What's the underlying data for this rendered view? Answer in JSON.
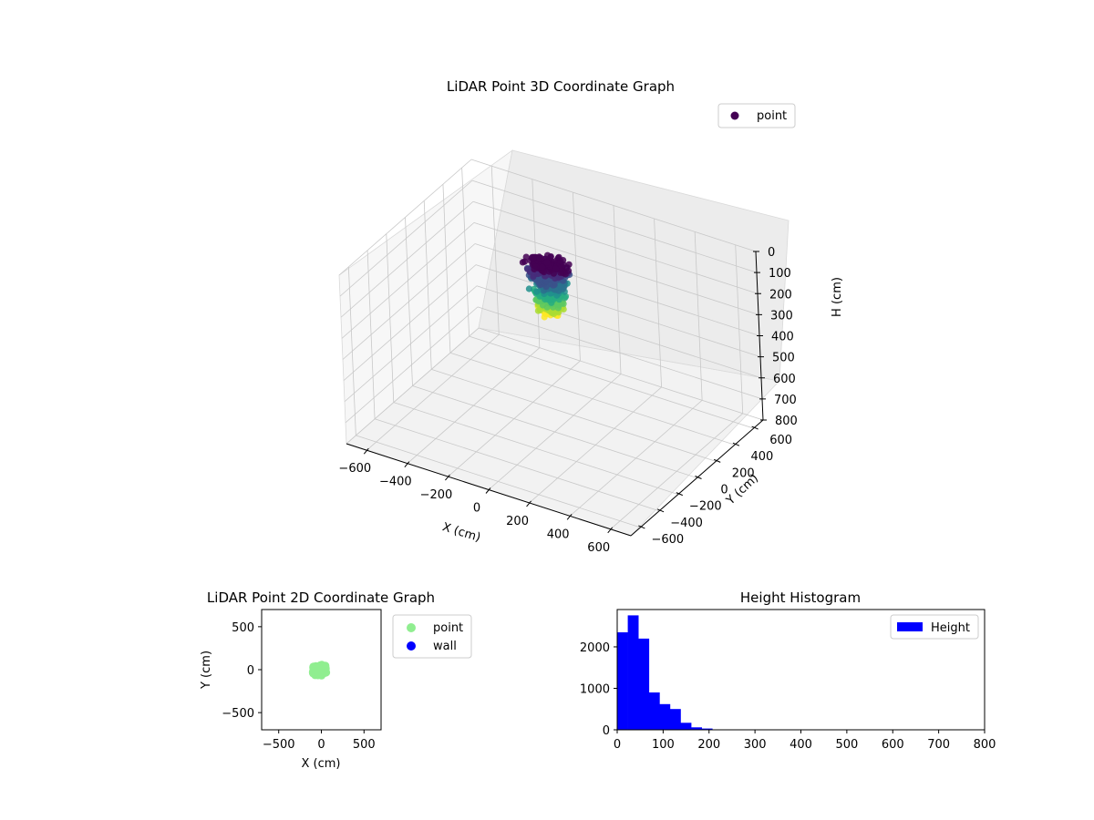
{
  "chart_data": [
    {
      "type": "scatter",
      "title": "LiDAR Point 3D Coordinate Graph",
      "xlabel": "X (cm)",
      "ylabel": "Y (cm)",
      "zlabel": "H (cm)",
      "xlim": [
        -700,
        700
      ],
      "ylim": [
        -700,
        700
      ],
      "zlim": [
        0,
        800
      ],
      "z_inverted": true,
      "x_ticks": [
        -600,
        -400,
        -200,
        0,
        200,
        400,
        600
      ],
      "y_ticks": [
        -600,
        -400,
        -200,
        0,
        200,
        400,
        600
      ],
      "z_ticks": [
        0,
        100,
        200,
        300,
        400,
        500,
        600,
        700,
        800
      ],
      "colormap": "viridis",
      "grid": true,
      "legend": {
        "position": "top-right",
        "entries": [
          {
            "name": "point",
            "color": "#440154"
          }
        ]
      },
      "point_cloud": {
        "x_range": [
          -200,
          200
        ],
        "y_range": [
          -150,
          150
        ],
        "h_range": [
          0,
          230
        ],
        "dense_band": [
          0,
          120
        ]
      }
    },
    {
      "type": "scatter",
      "title": "LiDAR Point 2D Coordinate Graph",
      "xlabel": "X (cm)",
      "ylabel": "Y (cm)",
      "xlim": [
        -700,
        700
      ],
      "ylim": [
        -700,
        700
      ],
      "x_ticks": [
        -500,
        0,
        500
      ],
      "y_ticks": [
        -500,
        0,
        500
      ],
      "legend": {
        "position": "outside-right",
        "entries": [
          {
            "name": "point",
            "color": "#90ee90"
          },
          {
            "name": "wall",
            "color": "#0000ff"
          }
        ]
      },
      "series": [
        {
          "name": "point",
          "color": "#90ee90",
          "x_range": [
            -170,
            120
          ],
          "y_range": [
            -100,
            90
          ]
        },
        {
          "name": "wall",
          "color": "#0000ff",
          "count": 0
        }
      ]
    },
    {
      "type": "bar",
      "title": "Height Histogram",
      "xlim": [
        0,
        800
      ],
      "ylim": [
        0,
        2900
      ],
      "x_ticks": [
        0,
        100,
        200,
        300,
        400,
        500,
        600,
        700,
        800
      ],
      "y_ticks": [
        0,
        1000,
        2000
      ],
      "bin_width": 23,
      "bin_edges_start": 0,
      "values": [
        2350,
        2760,
        2200,
        900,
        620,
        500,
        170,
        60,
        30,
        10
      ],
      "legend": {
        "position": "top-right",
        "entries": [
          {
            "name": "Height",
            "color": "#0000ff"
          }
        ]
      },
      "series": [
        {
          "name": "Height",
          "color": "#0000ff"
        }
      ]
    }
  ]
}
